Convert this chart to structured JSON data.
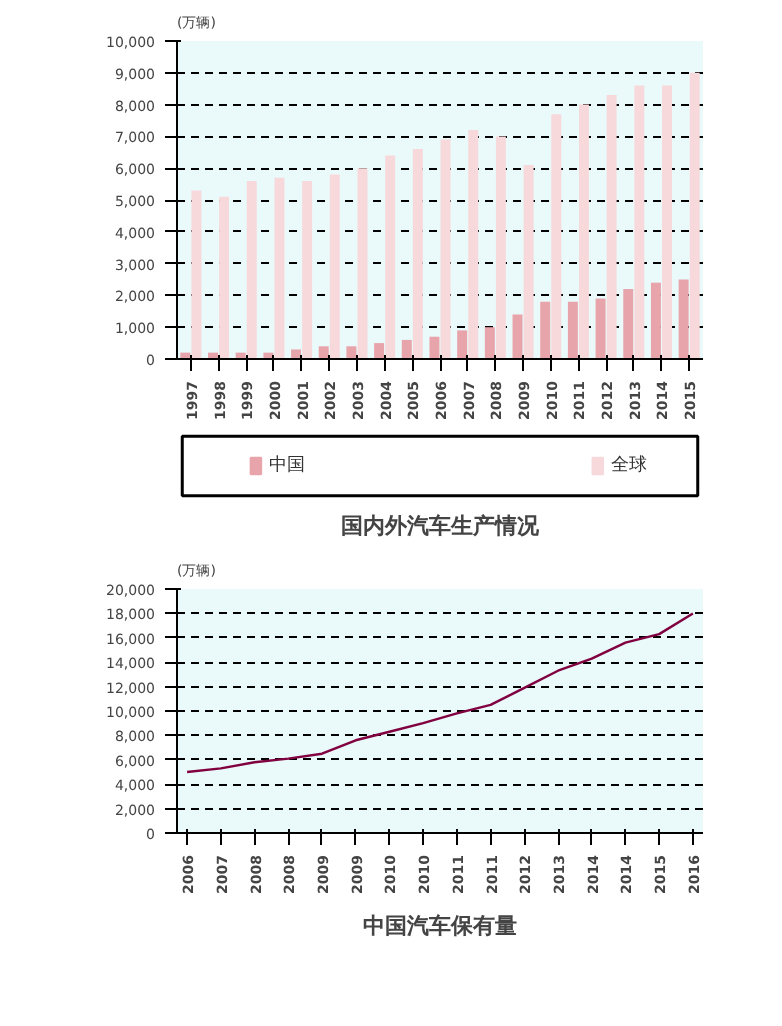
{
  "chart_data": [
    {
      "type": "bar",
      "title": "国内外汽车生产情况",
      "ylabel": "(万辆)",
      "categories": [
        "1997",
        "1998",
        "1999",
        "2000",
        "2001",
        "2002",
        "2003",
        "2004",
        "2005",
        "2006",
        "2007",
        "2008",
        "2009",
        "2010",
        "2011",
        "2012",
        "2013",
        "2014",
        "2015"
      ],
      "series": [
        {
          "name": "中国",
          "color": "#e8a4ab",
          "values": [
            200,
            200,
            200,
            200,
            300,
            400,
            400,
            500,
            600,
            700,
            900,
            1000,
            1400,
            1800,
            1800,
            1900,
            2200,
            2400,
            2500
          ]
        },
        {
          "name": "全球",
          "color": "#f7d9db",
          "values": [
            5300,
            5100,
            5600,
            5700,
            5600,
            5800,
            6000,
            6400,
            6600,
            6900,
            7200,
            7000,
            6100,
            7700,
            8000,
            8300,
            8600,
            8600,
            9000
          ]
        }
      ],
      "ylim": [
        0,
        10000
      ],
      "yticks": [
        0,
        {
          "value": 1000,
          "label": "1,000"
        },
        {
          "value": 2000,
          "label": "2,000"
        },
        {
          "value": 3000,
          "label": "3,000"
        },
        {
          "value": 4000,
          "label": "4,000"
        },
        {
          "value": 5000,
          "label": "5,000"
        },
        {
          "value": 6000,
          "label": "6,000"
        },
        {
          "value": 7000,
          "label": "7,000"
        },
        {
          "value": 8000,
          "label": "8,000"
        },
        {
          "value": 9000,
          "label": "9,000"
        },
        {
          "value": 10000,
          "label": "10,000"
        }
      ],
      "grid": "y",
      "legend": "bottom"
    },
    {
      "type": "line",
      "title": "中国汽车保有量",
      "ylabel": "(万辆)",
      "categories": [
        "2006",
        "2007",
        "2008",
        "2008",
        "2009",
        "2009",
        "2010",
        "2010",
        "2011",
        "2011",
        "2012",
        "2013",
        "2014",
        "2014",
        "2015",
        "2016"
      ],
      "series": [
        {
          "color": "#800040",
          "values": [
            5000,
            5300,
            5800,
            6100,
            6500,
            7600,
            8300,
            9000,
            9800,
            10500,
            11900,
            13300,
            14300,
            15600,
            16300,
            18000
          ]
        }
      ],
      "ylim": [
        0,
        20000
      ],
      "yticks": [
        0,
        {
          "value": 2000,
          "label": "2,000"
        },
        {
          "value": 4000,
          "label": "4,000"
        },
        {
          "value": 6000,
          "label": "6,000"
        },
        {
          "value": 8000,
          "label": "8,000"
        },
        {
          "value": 10000,
          "label": "10,000"
        },
        {
          "value": 12000,
          "label": "12,000"
        },
        {
          "value": 14000,
          "label": "14,000"
        },
        {
          "value": 16000,
          "label": "16,000"
        },
        {
          "value": 18000,
          "label": "18,000"
        },
        {
          "value": 20000,
          "label": "20,000"
        }
      ],
      "grid": "y",
      "marker": "none"
    }
  ]
}
